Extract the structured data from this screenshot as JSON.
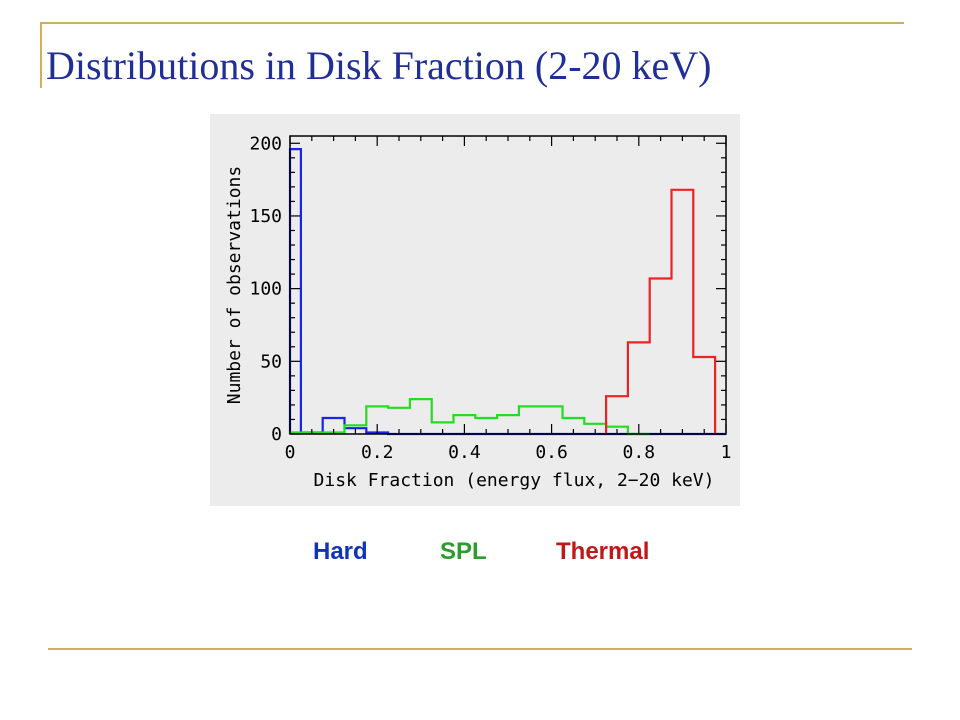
{
  "slide": {
    "title": "Distributions in Disk Fraction (2-20 keV)"
  },
  "legend": [
    {
      "label": "Hard",
      "color": "#1133bb"
    },
    {
      "label": "SPL",
      "color": "#2e9b2e"
    },
    {
      "label": "Thermal",
      "color": "#c01818"
    }
  ],
  "chart_data": {
    "type": "histogram",
    "xlabel": "Disk Fraction (energy flux, 2−20 keV)",
    "ylabel": "Number of observations",
    "xlim": [
      0,
      1
    ],
    "ylim": [
      0,
      205
    ],
    "xticks": [
      0,
      0.2,
      0.4,
      0.6,
      0.8,
      1
    ],
    "xtick_labels": [
      "0",
      "0.2",
      "0.4",
      "0.6",
      "0.8",
      "1"
    ],
    "yticks": [
      0,
      50,
      100,
      150,
      200
    ],
    "ytick_labels": [
      "0",
      "50",
      "100",
      "150",
      "200"
    ],
    "bin_width": 0.05,
    "series": [
      {
        "color": "#1a22ee",
        "bins": [
          {
            "x0": 0.0,
            "x1": 0.025,
            "y": 196
          },
          {
            "x0": 0.025,
            "x1": 0.075,
            "y": 1
          },
          {
            "x0": 0.075,
            "x1": 0.125,
            "y": 11
          },
          {
            "x0": 0.125,
            "x1": 0.175,
            "y": 4
          },
          {
            "x0": 0.175,
            "x1": 0.225,
            "y": 1
          },
          {
            "x0": 0.225,
            "x1": 1.0,
            "y": 0
          }
        ]
      },
      {
        "color": "#22dd22",
        "bins": [
          {
            "x0": 0.0,
            "x1": 0.125,
            "y": 1
          },
          {
            "x0": 0.125,
            "x1": 0.175,
            "y": 6
          },
          {
            "x0": 0.175,
            "x1": 0.225,
            "y": 19
          },
          {
            "x0": 0.225,
            "x1": 0.275,
            "y": 18
          },
          {
            "x0": 0.275,
            "x1": 0.325,
            "y": 24
          },
          {
            "x0": 0.325,
            "x1": 0.375,
            "y": 8
          },
          {
            "x0": 0.375,
            "x1": 0.425,
            "y": 13
          },
          {
            "x0": 0.425,
            "x1": 0.475,
            "y": 11
          },
          {
            "x0": 0.475,
            "x1": 0.525,
            "y": 13
          },
          {
            "x0": 0.525,
            "x1": 0.625,
            "y": 19
          },
          {
            "x0": 0.625,
            "x1": 0.675,
            "y": 11
          },
          {
            "x0": 0.675,
            "x1": 0.725,
            "y": 7
          },
          {
            "x0": 0.725,
            "x1": 0.775,
            "y": 5
          },
          {
            "x0": 0.775,
            "x1": 0.825,
            "y": 0
          }
        ]
      },
      {
        "color": "#ee2222",
        "bins": [
          {
            "x0": 0.725,
            "x1": 0.775,
            "y": 26
          },
          {
            "x0": 0.775,
            "x1": 0.825,
            "y": 63
          },
          {
            "x0": 0.825,
            "x1": 0.875,
            "y": 107
          },
          {
            "x0": 0.875,
            "x1": 0.925,
            "y": 168
          },
          {
            "x0": 0.925,
            "x1": 0.975,
            "y": 53
          }
        ]
      }
    ]
  }
}
